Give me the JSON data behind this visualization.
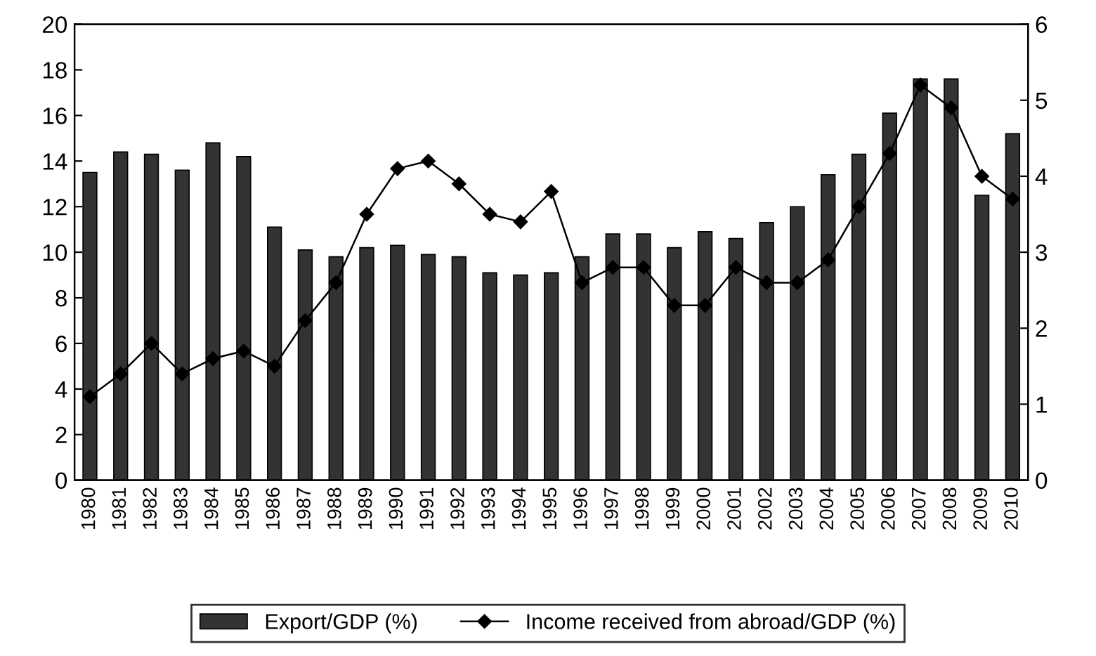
{
  "chart_data": {
    "type": "bar",
    "categories": [
      "1980",
      "1981",
      "1982",
      "1983",
      "1984",
      "1985",
      "1986",
      "1987",
      "1988",
      "1989",
      "1990",
      "1991",
      "1992",
      "1993",
      "1994",
      "1995",
      "1996",
      "1997",
      "1998",
      "1999",
      "2000",
      "2001",
      "2002",
      "2003",
      "2004",
      "2005",
      "2006",
      "2007",
      "2008",
      "2009",
      "2010"
    ],
    "series": [
      {
        "name": "Export/GDP (%)",
        "color": "#333333",
        "values": [
          13.5,
          14.4,
          14.3,
          13.6,
          14.8,
          14.2,
          11.1,
          10.1,
          9.8,
          10.2,
          10.3,
          9.9,
          9.8,
          9.1,
          9.0,
          9.1,
          9.8,
          10.8,
          10.8,
          10.2,
          10.9,
          10.6,
          11.3,
          12.0,
          13.4,
          14.3,
          16.1,
          17.6,
          17.6,
          12.5,
          15.2
        ]
      },
      {
        "name": "Income received from abroad/GDP (%)",
        "type": "line",
        "axis": "y2",
        "color": "#000000",
        "marker": "diamond",
        "values": [
          1.1,
          1.4,
          1.8,
          1.4,
          1.6,
          1.7,
          1.5,
          2.1,
          2.6,
          3.5,
          4.1,
          4.2,
          3.9,
          3.5,
          3.4,
          3.8,
          2.6,
          2.8,
          2.8,
          2.3,
          2.3,
          2.8,
          2.6,
          2.6,
          2.9,
          3.6,
          4.3,
          5.2,
          4.9,
          4.0,
          3.7
        ]
      }
    ],
    "ylim": [
      0,
      20
    ],
    "yticks": [
      0,
      2,
      4,
      6,
      8,
      10,
      12,
      14,
      16,
      18,
      20
    ],
    "y2lim": [
      0,
      6
    ],
    "y2ticks": [
      0,
      1,
      2,
      3,
      4,
      5,
      6
    ],
    "grid": false,
    "legend": "bottom"
  }
}
